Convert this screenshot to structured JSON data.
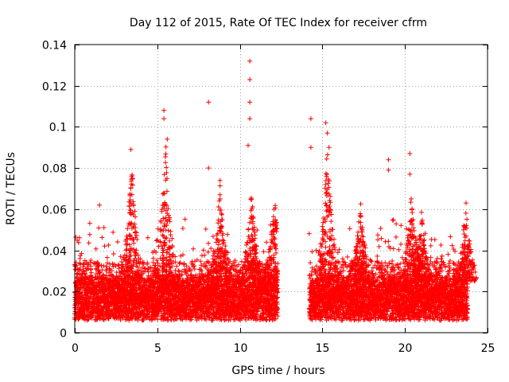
{
  "chart_data": {
    "type": "scatter",
    "title": "Day 112 of 2015, Rate Of TEC Index for receiver cfrm",
    "xlabel": "GPS time / hours",
    "ylabel": "ROTI / TECUs",
    "xlim": [
      0,
      25
    ],
    "ylim": [
      0,
      0.14
    ],
    "xticks": [
      0,
      5,
      10,
      15,
      20,
      25
    ],
    "xtick_labels": [
      "0",
      "5",
      "10",
      "15",
      "20",
      "25"
    ],
    "yticks": [
      0,
      0.02,
      0.04,
      0.06,
      0.08,
      0.1,
      0.12,
      0.14
    ],
    "ytick_labels": [
      "0",
      "0.02",
      "0.04",
      "0.06",
      "0.08",
      "0.1",
      "0.12",
      "0.14"
    ],
    "grid": true,
    "marker": "+",
    "color": "#ff0000",
    "data_gap_hours": [
      12.3,
      14.2
    ],
    "notable_points": [
      {
        "x": 1.5,
        "y": 0.062
      },
      {
        "x": 3.4,
        "y": 0.089
      },
      {
        "x": 3.5,
        "y": 0.075
      },
      {
        "x": 5.4,
        "y": 0.108
      },
      {
        "x": 5.4,
        "y": 0.104
      },
      {
        "x": 5.6,
        "y": 0.094
      },
      {
        "x": 8.1,
        "y": 0.112
      },
      {
        "x": 8.1,
        "y": 0.08
      },
      {
        "x": 8.8,
        "y": 0.074
      },
      {
        "x": 10.6,
        "y": 0.132
      },
      {
        "x": 10.6,
        "y": 0.123
      },
      {
        "x": 10.6,
        "y": 0.112
      },
      {
        "x": 10.6,
        "y": 0.104
      },
      {
        "x": 10.5,
        "y": 0.091
      },
      {
        "x": 14.3,
        "y": 0.104
      },
      {
        "x": 14.3,
        "y": 0.09
      },
      {
        "x": 15.2,
        "y": 0.102
      },
      {
        "x": 15.3,
        "y": 0.097
      },
      {
        "x": 15.4,
        "y": 0.09
      },
      {
        "x": 19.0,
        "y": 0.084
      },
      {
        "x": 19.0,
        "y": 0.079
      },
      {
        "x": 20.3,
        "y": 0.087
      },
      {
        "x": 20.3,
        "y": 0.077
      },
      {
        "x": 23.7,
        "y": 0.063
      }
    ],
    "spike_clusters": [
      {
        "x": 3.45,
        "peak": 0.085
      },
      {
        "x": 5.5,
        "peak": 0.095
      },
      {
        "x": 8.8,
        "peak": 0.073
      },
      {
        "x": 10.7,
        "peak": 0.07
      },
      {
        "x": 12.1,
        "peak": 0.068
      },
      {
        "x": 15.3,
        "peak": 0.095
      },
      {
        "x": 17.3,
        "peak": 0.065
      },
      {
        "x": 20.4,
        "peak": 0.07
      },
      {
        "x": 21.0,
        "peak": 0.06
      },
      {
        "x": 23.7,
        "peak": 0.062
      }
    ],
    "baseline": {
      "median": 0.017,
      "spread": 0.007,
      "upper_band": 0.035
    }
  }
}
